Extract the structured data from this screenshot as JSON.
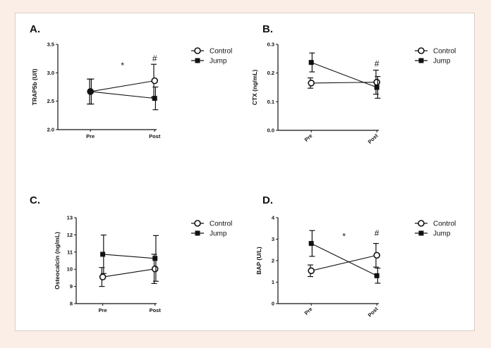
{
  "chart_data": [
    {
      "type": "line",
      "panel_label": "A.",
      "ylabel": "TRAP5b (U/l)",
      "categories": [
        "Pre",
        "Post"
      ],
      "ylim": [
        2.0,
        3.5
      ],
      "yticks": [
        "2.0",
        "2.5",
        "3.0",
        "3.5"
      ],
      "rotate_x": false,
      "series": [
        {
          "name": "Control",
          "marker": "open-circle",
          "values": [
            2.67,
            2.86
          ],
          "err": [
            0.22,
            0.29
          ]
        },
        {
          "name": "Jump",
          "marker": "filled-square",
          "values": [
            2.67,
            2.55
          ],
          "err": [
            0.22,
            0.2
          ]
        }
      ],
      "annotations": [
        {
          "text": "*",
          "x": 0.5,
          "y": 3.08
        },
        {
          "text": "#",
          "x": 1,
          "y": 3.2
        }
      ]
    },
    {
      "type": "line",
      "panel_label": "B.",
      "ylabel": "CTX (ng/mL)",
      "categories": [
        "Pre",
        "Post"
      ],
      "ylim": [
        0.0,
        0.3
      ],
      "yticks": [
        "0.0",
        "0.1",
        "0.2",
        "0.3"
      ],
      "rotate_x": true,
      "series": [
        {
          "name": "Control",
          "marker": "open-circle",
          "values": [
            0.165,
            0.168
          ],
          "err": [
            0.018,
            0.042
          ]
        },
        {
          "name": "Jump",
          "marker": "filled-square",
          "values": [
            0.237,
            0.15
          ],
          "err": [
            0.033,
            0.038
          ]
        }
      ],
      "annotations": [
        {
          "text": "#",
          "x": 1,
          "y": 0.222
        }
      ]
    },
    {
      "type": "line",
      "panel_label": "C.",
      "ylabel": "Osteocalcin (ng/mL)",
      "categories": [
        "Pre",
        "Post"
      ],
      "ylim": [
        8,
        13
      ],
      "yticks": [
        "8",
        "9",
        "10",
        "11",
        "12",
        "13"
      ],
      "rotate_x": false,
      "series": [
        {
          "name": "Control",
          "marker": "open-circle",
          "values": [
            9.55,
            10.02
          ],
          "err": [
            0.55,
            0.85
          ]
        },
        {
          "name": "Jump",
          "marker": "filled-square",
          "values": [
            10.87,
            10.63
          ],
          "err": [
            1.12,
            1.33
          ]
        }
      ],
      "annotations": []
    },
    {
      "type": "line",
      "panel_label": "D.",
      "ylabel": "BAP (U/L)",
      "categories": [
        "Pre",
        "Post"
      ],
      "ylim": [
        0,
        4
      ],
      "yticks": [
        "0",
        "1",
        "2",
        "3",
        "4"
      ],
      "rotate_x": true,
      "series": [
        {
          "name": "Control",
          "marker": "open-circle",
          "values": [
            1.53,
            2.25
          ],
          "err": [
            0.27,
            0.55
          ]
        },
        {
          "name": "Jump",
          "marker": "filled-square",
          "values": [
            2.8,
            1.3
          ],
          "err": [
            0.6,
            0.35
          ]
        }
      ],
      "annotations": [
        {
          "text": "*",
          "x": 0.5,
          "y": 3.0
        },
        {
          "text": "#",
          "x": 1,
          "y": 3.15
        }
      ]
    }
  ]
}
